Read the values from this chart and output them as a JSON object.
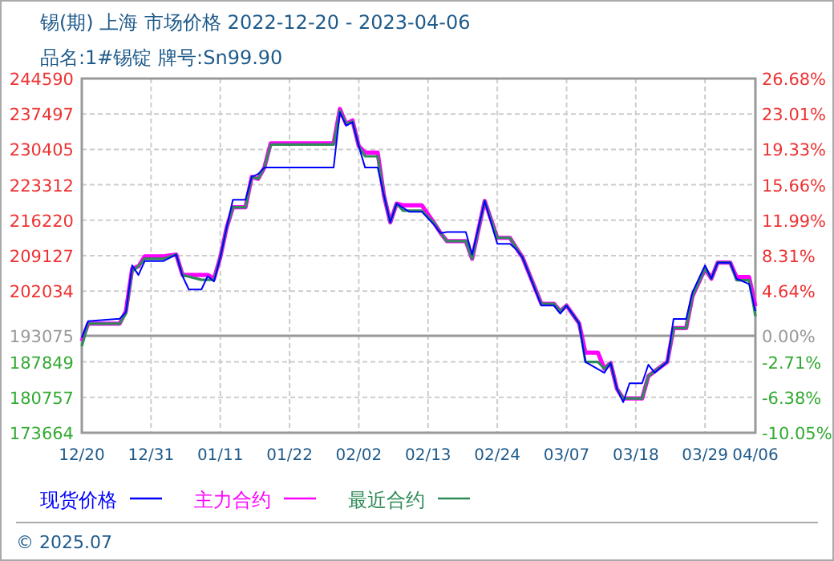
{
  "chart_data": {
    "type": "line",
    "title": "锡(期) 上海 市场价格 2022-12-20 - 2023-04-06",
    "subtitle": "品名:1#锡锭 牌号:Sn99.90",
    "xlim": [
      "2022-12-20",
      "2023-04-06"
    ],
    "xticks": [
      {
        "value": "2022-12-20",
        "label": "12/20"
      },
      {
        "value": "2022-12-31",
        "label": "12/31"
      },
      {
        "value": "2023-01-11",
        "label": "01/11"
      },
      {
        "value": "2023-01-22",
        "label": "01/22"
      },
      {
        "value": "2023-02-02",
        "label": "02/02"
      },
      {
        "value": "2023-02-13",
        "label": "02/13"
      },
      {
        "value": "2023-02-24",
        "label": "02/24"
      },
      {
        "value": "2023-03-07",
        "label": "03/07"
      },
      {
        "value": "2023-03-18",
        "label": "03/18"
      },
      {
        "value": "2023-03-29",
        "label": "03/29"
      },
      {
        "value": "2023-04-06",
        "label": "04/06"
      }
    ],
    "ylim": [
      173664,
      244590
    ],
    "yticks": [
      173664,
      180757,
      187849,
      193075,
      202034,
      209127,
      216220,
      223312,
      230405,
      237497,
      244590
    ],
    "y2lim": [
      -10.05,
      26.68
    ],
    "y2ticks": [
      {
        "value": -10.05,
        "label": "-10.05%"
      },
      {
        "value": -6.38,
        "label": "-6.38%"
      },
      {
        "value": -2.71,
        "label": "-2.71%"
      },
      {
        "value": 0,
        "label": "0.00%"
      },
      {
        "value": 4.64,
        "label": "4.64%"
      },
      {
        "value": 8.31,
        "label": "8.31%"
      },
      {
        "value": 11.99,
        "label": "11.99%"
      },
      {
        "value": 15.66,
        "label": "15.66%"
      },
      {
        "value": 19.33,
        "label": "19.33%"
      },
      {
        "value": 23.01,
        "label": "23.01%"
      },
      {
        "value": 26.68,
        "label": "26.68%"
      }
    ],
    "grid": true,
    "legend": "bottom",
    "line_style": "solid",
    "ref_lines": [
      {
        "axis": "y",
        "value": 193075,
        "color": "#999999"
      }
    ],
    "annotations": [
      "© 2025.07"
    ],
    "series": [
      {
        "name": "现货价格",
        "color": "#0000ff",
        "x": [
          "2022-12-20",
          "2022-12-21",
          "2022-12-26",
          "2022-12-27",
          "2022-12-28",
          "2022-12-29",
          "2022-12-30",
          "2023-01-02",
          "2023-01-04",
          "2023-01-05",
          "2023-01-06",
          "2023-01-08",
          "2023-01-09",
          "2023-01-10",
          "2023-01-11",
          "2023-01-12",
          "2023-01-13",
          "2023-01-15",
          "2023-01-16",
          "2023-01-17",
          "2023-01-18",
          "2023-01-29",
          "2023-01-30",
          "2023-01-31",
          "2023-02-01",
          "2023-02-02",
          "2023-02-03",
          "2023-02-05",
          "2023-02-06",
          "2023-02-07",
          "2023-02-08",
          "2023-02-10",
          "2023-02-12",
          "2023-02-14",
          "2023-02-15",
          "2023-02-16",
          "2023-02-19",
          "2023-02-20",
          "2023-02-22",
          "2023-02-24",
          "2023-02-26",
          "2023-02-27",
          "2023-02-28",
          "2023-03-03",
          "2023-03-05",
          "2023-03-06",
          "2023-03-07",
          "2023-03-09",
          "2023-03-10",
          "2023-03-13",
          "2023-03-14",
          "2023-03-15",
          "2023-03-16",
          "2023-03-17",
          "2023-03-19",
          "2023-03-20",
          "2023-03-21",
          "2023-03-23",
          "2023-03-24",
          "2023-03-26",
          "2023-03-27",
          "2023-03-29",
          "2023-03-30",
          "2023-03-31",
          "2023-04-02",
          "2023-04-03",
          "2023-04-05",
          "2023-04-06"
        ],
        "values": [
          192700,
          196000,
          196500,
          197800,
          207190,
          205260,
          208060,
          208060,
          209350,
          205040,
          202350,
          202350,
          205040,
          203960,
          208800,
          214700,
          220320,
          220320,
          224920,
          225470,
          226760,
          226760,
          237820,
          235140,
          235880,
          231050,
          226760,
          226760,
          221150,
          215800,
          219540,
          217930,
          217930,
          215250,
          213640,
          213850,
          213850,
          209350,
          220090,
          211480,
          211480,
          210410,
          208800,
          199130,
          199130,
          197520,
          199130,
          195570,
          187850,
          185680,
          187620,
          182460,
          179790,
          183570,
          183570,
          187300,
          185680,
          187850,
          196450,
          196450,
          201810,
          207190,
          204520,
          207740,
          207740,
          204520,
          203450,
          198060
        ]
      },
      {
        "name": "主力合约",
        "color": "#ff00ff",
        "x": [
          "2022-12-20",
          "2022-12-21",
          "2022-12-26",
          "2022-12-27",
          "2022-12-28",
          "2022-12-29",
          "2022-12-30",
          "2023-01-02",
          "2023-01-04",
          "2023-01-05",
          "2023-01-08",
          "2023-01-09",
          "2023-01-10",
          "2023-01-11",
          "2023-01-12",
          "2023-01-13",
          "2023-01-15",
          "2023-01-16",
          "2023-01-17",
          "2023-01-18",
          "2023-01-19",
          "2023-01-29",
          "2023-01-30",
          "2023-01-31",
          "2023-02-01",
          "2023-02-02",
          "2023-02-03",
          "2023-02-05",
          "2023-02-06",
          "2023-02-07",
          "2023-02-08",
          "2023-02-09",
          "2023-02-12",
          "2023-02-14",
          "2023-02-15",
          "2023-02-16",
          "2023-02-19",
          "2023-02-20",
          "2023-02-22",
          "2023-02-24",
          "2023-02-26",
          "2023-02-27",
          "2023-02-28",
          "2023-03-03",
          "2023-03-05",
          "2023-03-06",
          "2023-03-07",
          "2023-03-09",
          "2023-03-10",
          "2023-03-12",
          "2023-03-13",
          "2023-03-14",
          "2023-03-15",
          "2023-03-16",
          "2023-03-19",
          "2023-03-20",
          "2023-03-21",
          "2023-03-23",
          "2023-03-24",
          "2023-03-26",
          "2023-03-27",
          "2023-03-29",
          "2023-03-30",
          "2023-03-31",
          "2023-04-02",
          "2023-04-03",
          "2023-04-05",
          "2023-04-06"
        ],
        "values": [
          192000,
          195500,
          195500,
          198000,
          206500,
          207000,
          209000,
          209000,
          209350,
          205260,
          205260,
          205260,
          204500,
          208800,
          214700,
          218800,
          218800,
          224920,
          224500,
          226760,
          231600,
          231600,
          238500,
          235500,
          236200,
          231050,
          229760,
          229760,
          221150,
          215800,
          219540,
          219220,
          219220,
          215600,
          213640,
          212030,
          212030,
          208500,
          220090,
          212700,
          212700,
          210700,
          208800,
          199500,
          199500,
          198000,
          199130,
          195570,
          189680,
          189680,
          186500,
          187620,
          182460,
          180530,
          180530,
          185000,
          186000,
          187850,
          194620,
          194620,
          201000,
          206500,
          204520,
          207740,
          207740,
          204840,
          204840,
          199000
        ]
      },
      {
        "name": "最近合约",
        "color": "#2e8b57",
        "x": [
          "2022-12-20",
          "2022-12-21",
          "2022-12-26",
          "2022-12-27",
          "2022-12-28",
          "2022-12-29",
          "2022-12-30",
          "2023-01-02",
          "2023-01-04",
          "2023-01-05",
          "2023-01-08",
          "2023-01-09",
          "2023-01-10",
          "2023-01-11",
          "2023-01-12",
          "2023-01-13",
          "2023-01-15",
          "2023-01-16",
          "2023-01-17",
          "2023-01-18",
          "2023-01-19",
          "2023-01-29",
          "2023-01-30",
          "2023-01-31",
          "2023-02-01",
          "2023-02-02",
          "2023-02-03",
          "2023-02-05",
          "2023-02-06",
          "2023-02-07",
          "2023-02-08",
          "2023-02-09",
          "2023-02-12",
          "2023-02-14",
          "2023-02-15",
          "2023-02-16",
          "2023-02-19",
          "2023-02-20",
          "2023-02-22",
          "2023-02-24",
          "2023-02-26",
          "2023-02-27",
          "2023-02-28",
          "2023-03-03",
          "2023-03-05",
          "2023-03-06",
          "2023-03-07",
          "2023-03-09",
          "2023-03-10",
          "2023-03-12",
          "2023-03-13",
          "2023-03-14",
          "2023-03-15",
          "2023-03-16",
          "2023-03-19",
          "2023-03-20",
          "2023-03-21",
          "2023-03-23",
          "2023-03-24",
          "2023-03-26",
          "2023-03-27",
          "2023-03-29",
          "2023-03-30",
          "2023-03-31",
          "2023-04-02",
          "2023-04-03",
          "2023-04-05",
          "2023-04-06"
        ],
        "values": [
          191000,
          195500,
          195500,
          197500,
          206000,
          207000,
          208500,
          208500,
          209350,
          205260,
          204290,
          204290,
          204290,
          208800,
          214700,
          218800,
          218800,
          224920,
          224500,
          226760,
          231370,
          231370,
          238200,
          235500,
          236000,
          231050,
          229020,
          229020,
          221150,
          215800,
          219540,
          218150,
          218150,
          215600,
          213640,
          212030,
          212030,
          208500,
          220090,
          212700,
          212700,
          210700,
          208800,
          199500,
          199500,
          198000,
          199130,
          195570,
          187850,
          187850,
          186500,
          187620,
          182460,
          180530,
          180530,
          185000,
          186000,
          187850,
          194620,
          194620,
          201000,
          206500,
          204520,
          207740,
          207740,
          204200,
          204200,
          197000
        ]
      }
    ]
  }
}
